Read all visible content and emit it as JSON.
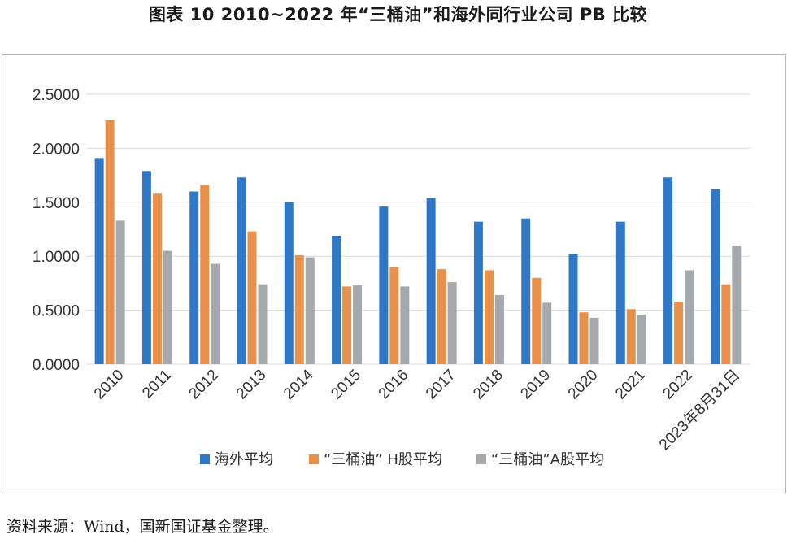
{
  "title": "图表 10  2010~2022 年“三桶油”和海外同行业公司 PB 比较",
  "source": "资料来源：Wind，国新国证基金整理。",
  "colors": {
    "series": [
      "#2E78C7",
      "#E9914A",
      "#A5A9AD"
    ],
    "grid": "#d9d9d9",
    "text": "#333333"
  },
  "chart_data": {
    "type": "bar",
    "categories": [
      "2010",
      "2011",
      "2012",
      "2013",
      "2014",
      "2015",
      "2016",
      "2017",
      "2018",
      "2019",
      "2020",
      "2021",
      "2022",
      "2023年8月31日"
    ],
    "series": [
      {
        "name": "海外平均",
        "values": [
          1.91,
          1.79,
          1.6,
          1.73,
          1.5,
          1.19,
          1.46,
          1.54,
          1.32,
          1.35,
          1.02,
          1.32,
          1.73,
          1.62
        ]
      },
      {
        "name": "“三桶油” H股平均",
        "values": [
          2.26,
          1.58,
          1.66,
          1.23,
          1.01,
          0.72,
          0.9,
          0.88,
          0.87,
          0.8,
          0.48,
          0.51,
          0.58,
          0.74
        ]
      },
      {
        "name": "“三桶油”A股平均",
        "values": [
          1.33,
          1.05,
          0.93,
          0.74,
          0.99,
          0.73,
          0.72,
          0.76,
          0.64,
          0.57,
          0.43,
          0.46,
          0.87,
          1.1
        ]
      }
    ],
    "yticks": [
      "0.0000",
      "0.5000",
      "1.0000",
      "1.5000",
      "2.0000",
      "2.5000"
    ],
    "ylim": [
      0,
      2.5
    ],
    "grid": true,
    "legend": "bottom"
  }
}
